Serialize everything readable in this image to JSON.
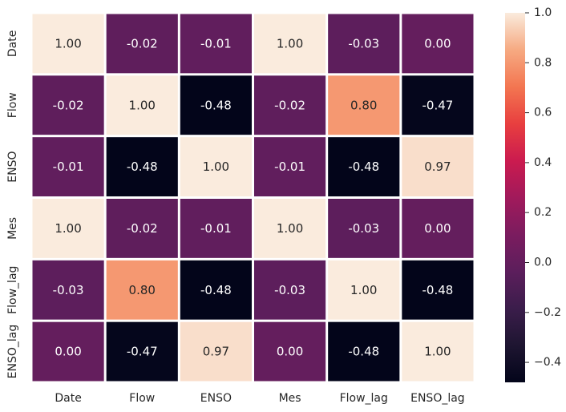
{
  "chart_data": {
    "type": "heatmap",
    "title": "",
    "xlabel": "",
    "ylabel": "",
    "rows": [
      "Date",
      "Flow",
      "ENSO",
      "Mes",
      "Flow_lag",
      "ENSO_lag"
    ],
    "columns": [
      "Date",
      "Flow",
      "ENSO",
      "Mes",
      "Flow_lag",
      "ENSO_lag"
    ],
    "values": [
      [
        1.0,
        -0.02,
        -0.01,
        1.0,
        -0.03,
        0.0
      ],
      [
        -0.02,
        1.0,
        -0.48,
        -0.02,
        0.8,
        -0.47
      ],
      [
        -0.01,
        -0.48,
        1.0,
        -0.01,
        -0.48,
        0.97
      ],
      [
        1.0,
        -0.02,
        -0.01,
        1.0,
        -0.03,
        0.0
      ],
      [
        -0.03,
        0.8,
        -0.48,
        -0.03,
        1.0,
        -0.48
      ],
      [
        0.0,
        -0.47,
        0.97,
        0.0,
        -0.48,
        1.0
      ]
    ],
    "annotations": [
      [
        "1.00",
        "-0.02",
        "-0.01",
        "1.00",
        "-0.03",
        "0.00"
      ],
      [
        "-0.02",
        "1.00",
        "-0.48",
        "-0.02",
        "0.80",
        "-0.47"
      ],
      [
        "-0.01",
        "-0.48",
        "1.00",
        "-0.01",
        "-0.48",
        "0.97"
      ],
      [
        "1.00",
        "-0.02",
        "-0.01",
        "1.00",
        "-0.03",
        "0.00"
      ],
      [
        "-0.03",
        "0.80",
        "-0.48",
        "-0.03",
        "1.00",
        "-0.48"
      ],
      [
        "0.00",
        "-0.47",
        "0.97",
        "0.00",
        "-0.48",
        "1.00"
      ]
    ],
    "colormap": "rocket",
    "vmin": -0.48,
    "vmax": 1.0,
    "colorbar": {
      "ticks": [
        1.0,
        0.8,
        0.6,
        0.4,
        0.2,
        0.0,
        -0.2,
        -0.4
      ],
      "tick_labels": [
        "1.0",
        "0.8",
        "0.6",
        "0.4",
        "0.2",
        "0.0",
        "−0.2",
        "−0.4"
      ]
    },
    "cell_border_color": "#ffffff",
    "light_text_color": "#ffffff",
    "dark_text_color": "#262626"
  }
}
